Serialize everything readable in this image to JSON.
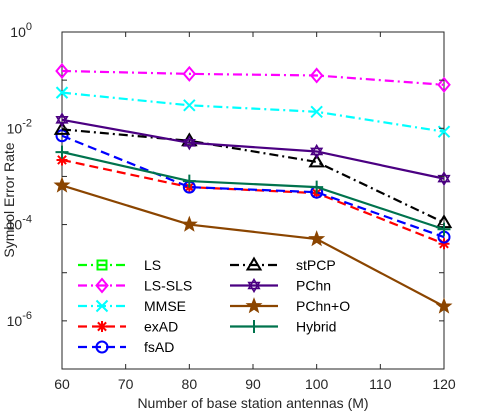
{
  "chart_data": {
    "type": "line",
    "xlabel": "Number of base station antennas (M)",
    "ylabel": "Symbol Error Rate",
    "x": [
      60,
      80,
      100,
      120
    ],
    "xlim": [
      60,
      120
    ],
    "xticks": [
      "60",
      "70",
      "80",
      "90",
      "100",
      "110",
      "120"
    ],
    "ylim": [
      1e-07,
      1
    ],
    "yscale": "log",
    "yticks": [
      {
        "base": "10",
        "exp": "0"
      },
      {
        "base": "10",
        "exp": "-2"
      },
      {
        "base": "10",
        "exp": "-4"
      },
      {
        "base": "10",
        "exp": "-6"
      }
    ],
    "grid": false,
    "legend_position": "lower-left",
    "series": [
      {
        "name": "LS",
        "values": [
          null,
          null,
          null,
          null
        ],
        "color": "#00ff00",
        "dash": "dashdot",
        "marker": "square"
      },
      {
        "name": "LS-SLS",
        "values": [
          0.155,
          0.135,
          0.125,
          0.08
        ],
        "color": "#ff00ff",
        "dash": "dashdot",
        "marker": "diamond"
      },
      {
        "name": "MMSE",
        "values": [
          0.055,
          0.03,
          0.022,
          0.0085
        ],
        "color": "#00ffff",
        "dash": "dashdot",
        "marker": "x"
      },
      {
        "name": "exAD",
        "values": [
          0.0022,
          0.0006,
          0.00045,
          4e-05
        ],
        "color": "#ff0000",
        "dash": "dashed",
        "marker": "asterisk"
      },
      {
        "name": "fsAD",
        "values": [
          0.007,
          0.0006,
          0.00047,
          5.5e-05
        ],
        "color": "#0000ff",
        "dash": "dashed",
        "marker": "circle"
      },
      {
        "name": "stPCP",
        "values": [
          0.0095,
          0.0055,
          0.002,
          0.00011
        ],
        "color": "#000000",
        "dash": "dashdot",
        "marker": "triangle"
      },
      {
        "name": "PChn",
        "values": [
          0.015,
          0.005,
          0.0033,
          0.0009
        ],
        "color": "#4b0082",
        "dash": "solid",
        "marker": "hexagram"
      },
      {
        "name": "PChn+O",
        "values": [
          0.00065,
          0.0001,
          5e-05,
          2e-06
        ],
        "color": "#8b4500",
        "dash": "solid",
        "marker": "pentagram"
      },
      {
        "name": "Hybrid",
        "values": [
          0.0032,
          0.0008,
          0.0006,
          8e-05
        ],
        "color": "#00734d",
        "dash": "solid",
        "marker": "plus"
      }
    ]
  }
}
